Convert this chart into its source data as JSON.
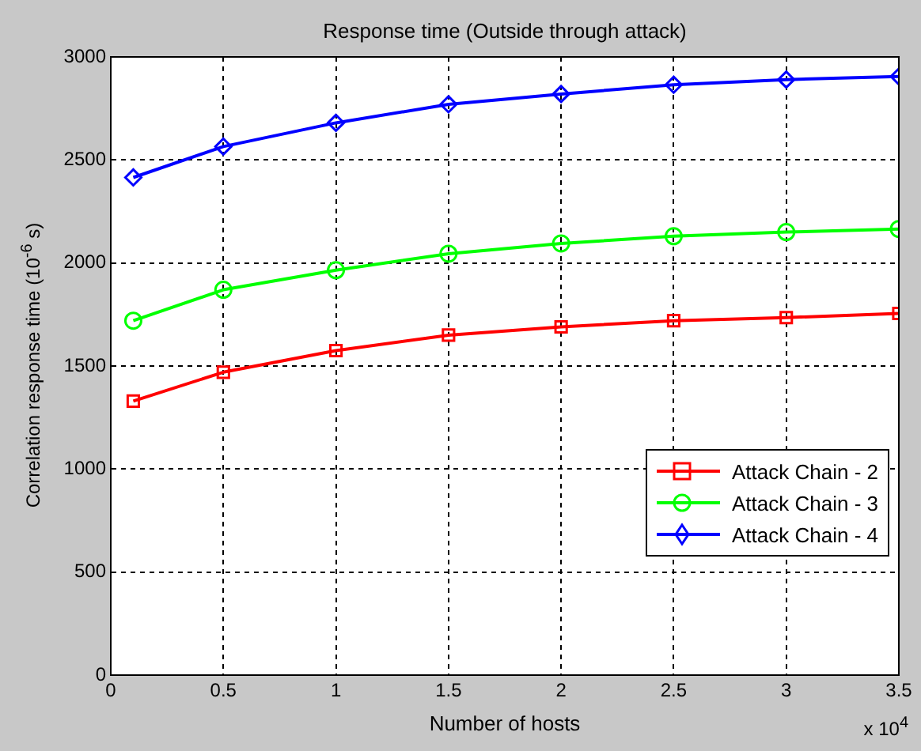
{
  "chart_data": {
    "type": "line",
    "title": "Response time (Outside through attack)",
    "xlabel": "Number of hosts",
    "ylabel": "Correlation response time (10$^{-6}$ s)",
    "annotations": [
      "x 10$^{4}$"
    ],
    "x": [
      0.1,
      0.5,
      1,
      1.5,
      2,
      2.5,
      3,
      3.5
    ],
    "series": [
      {
        "name": "Attack Chain - 2",
        "color": "#ff0000",
        "marker": "square",
        "values": [
          1330,
          1470,
          1575,
          1650,
          1690,
          1720,
          1735,
          1755
        ]
      },
      {
        "name": "Attack Chain - 3",
        "color": "#00ff00",
        "marker": "circle",
        "values": [
          1720,
          1870,
          1965,
          2045,
          2095,
          2130,
          2150,
          2165
        ]
      },
      {
        "name": "Attack Chain - 4",
        "color": "#0000ff",
        "marker": "diamond",
        "values": [
          2415,
          2565,
          2680,
          2770,
          2820,
          2865,
          2890,
          2905
        ]
      }
    ],
    "xlim": [
      0,
      3.5
    ],
    "xticks": [
      0,
      0.5,
      1,
      1.5,
      2,
      2.5,
      3,
      3.5
    ],
    "ylim": [
      0,
      3000
    ],
    "yticks": [
      0,
      500,
      1000,
      1500,
      2000,
      2500,
      3000
    ],
    "grid": true,
    "legend": "bottom right",
    "line_style": "solid"
  }
}
